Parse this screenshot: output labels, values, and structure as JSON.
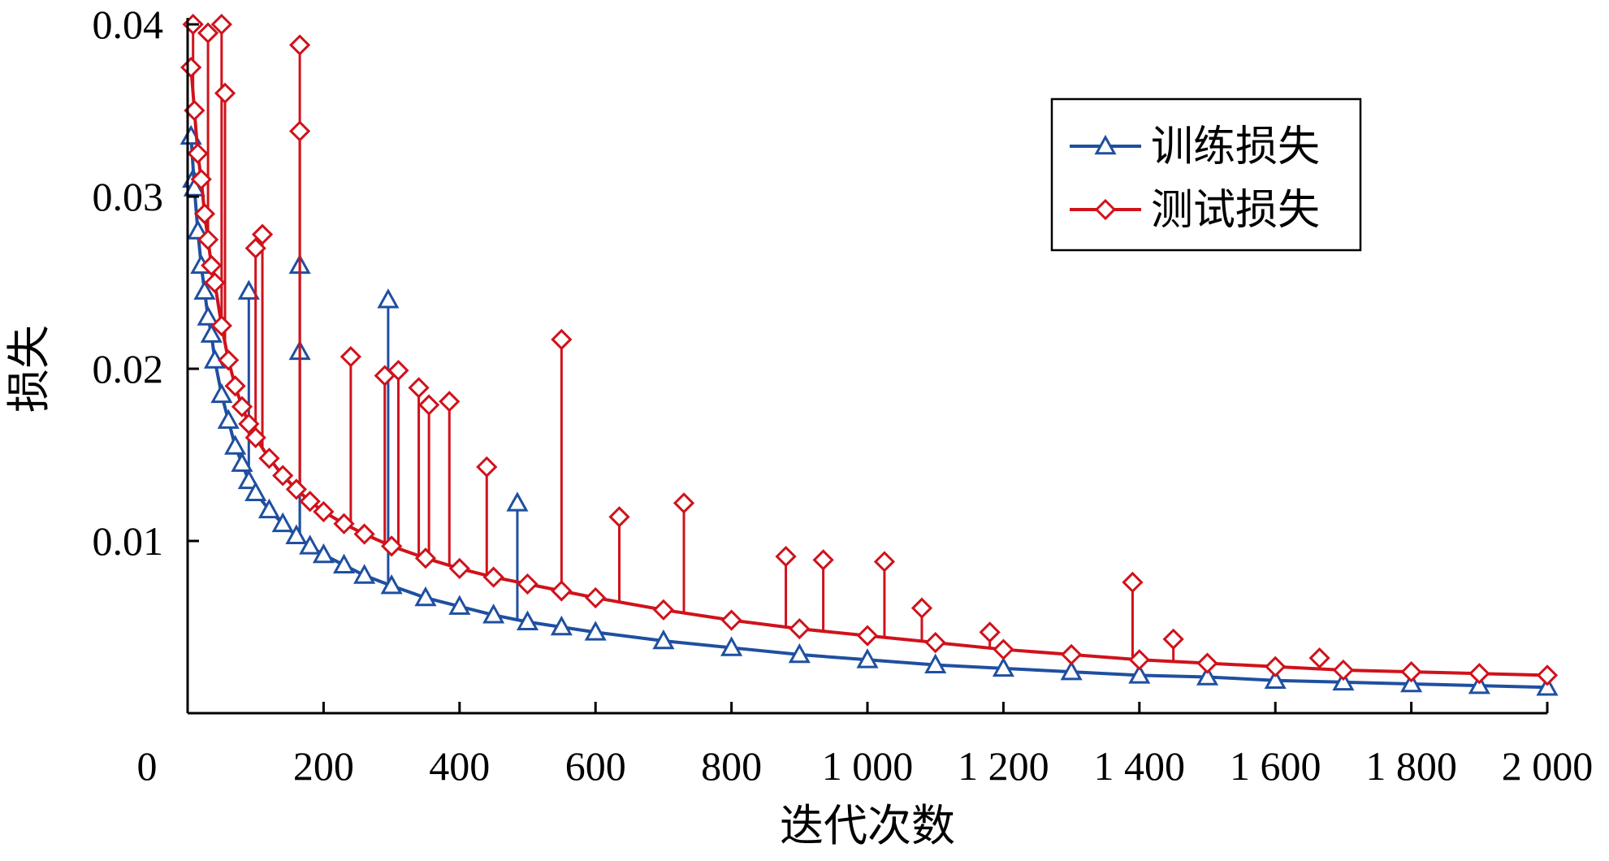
{
  "chart_data": {
    "type": "line",
    "xlabel": "迭代次数",
    "ylabel": "损失",
    "xlim": [
      0,
      2000
    ],
    "ylim": [
      0.0,
      0.04
    ],
    "x_ticks": [
      {
        "value": 0,
        "label": "0"
      },
      {
        "value": 200,
        "label": "200"
      },
      {
        "value": 400,
        "label": "400"
      },
      {
        "value": 600,
        "label": "600"
      },
      {
        "value": 800,
        "label": "800"
      },
      {
        "value": 1000,
        "label": "1 000"
      },
      {
        "value": 1200,
        "label": "1 200"
      },
      {
        "value": 1400,
        "label": "1 400"
      },
      {
        "value": 1600,
        "label": "1 600"
      },
      {
        "value": 1800,
        "label": "1 800"
      },
      {
        "value": 2000,
        "label": "2 000"
      }
    ],
    "y_ticks": [
      {
        "value": 0.01,
        "label": "0.01"
      },
      {
        "value": 0.02,
        "label": "0.02"
      },
      {
        "value": 0.03,
        "label": "0.03"
      },
      {
        "value": 0.04,
        "label": "0.04"
      }
    ],
    "grid": false,
    "legend_position": "top-right",
    "series": [
      {
        "name": "训练损失",
        "color": "#1f4fa0",
        "marker": "triangle",
        "x": [
          5,
          10,
          15,
          20,
          25,
          30,
          35,
          40,
          50,
          60,
          70,
          80,
          90,
          100,
          120,
          140,
          160,
          180,
          200,
          230,
          260,
          300,
          350,
          400,
          450,
          500,
          550,
          600,
          700,
          800,
          900,
          1000,
          1100,
          1200,
          1300,
          1400,
          1500,
          1600,
          1700,
          1800,
          1900,
          2000
        ],
        "y": [
          0.0335,
          0.0305,
          0.028,
          0.026,
          0.0245,
          0.023,
          0.022,
          0.0205,
          0.0185,
          0.017,
          0.0155,
          0.0145,
          0.0135,
          0.0128,
          0.0118,
          0.011,
          0.0103,
          0.0097,
          0.0092,
          0.0086,
          0.008,
          0.0074,
          0.0067,
          0.0062,
          0.0057,
          0.0053,
          0.005,
          0.0047,
          0.0042,
          0.0038,
          0.0034,
          0.0031,
          0.0028,
          0.0026,
          0.0024,
          0.0022,
          0.0021,
          0.0019,
          0.0018,
          0.0017,
          0.0016,
          0.0015
        ],
        "spikes": [
          {
            "x": 8,
            "y": 0.031
          },
          {
            "x": 90,
            "y": 0.0245
          },
          {
            "x": 165,
            "y": 0.026
          },
          {
            "x": 165,
            "y": 0.021
          },
          {
            "x": 295,
            "y": 0.024
          },
          {
            "x": 485,
            "y": 0.0122
          }
        ]
      },
      {
        "name": "测试损失",
        "color": "#d0121b",
        "marker": "diamond",
        "x": [
          5,
          10,
          15,
          20,
          25,
          30,
          35,
          40,
          50,
          60,
          70,
          80,
          90,
          100,
          120,
          140,
          160,
          180,
          200,
          230,
          260,
          300,
          350,
          400,
          450,
          500,
          550,
          600,
          700,
          800,
          900,
          1000,
          1100,
          1200,
          1300,
          1400,
          1500,
          1600,
          1700,
          1800,
          1900,
          2000
        ],
        "y": [
          0.0375,
          0.035,
          0.0325,
          0.031,
          0.029,
          0.0275,
          0.026,
          0.025,
          0.0225,
          0.0205,
          0.019,
          0.0178,
          0.0168,
          0.016,
          0.0148,
          0.0138,
          0.013,
          0.0123,
          0.0117,
          0.011,
          0.0104,
          0.0097,
          0.009,
          0.0084,
          0.0079,
          0.0075,
          0.0071,
          0.0067,
          0.006,
          0.0054,
          0.0049,
          0.0045,
          0.0041,
          0.0037,
          0.0034,
          0.0031,
          0.0029,
          0.0027,
          0.0025,
          0.0024,
          0.0023,
          0.0022
        ],
        "spikes": [
          {
            "x": 8,
            "y": 0.04
          },
          {
            "x": 30,
            "y": 0.0395
          },
          {
            "x": 50,
            "y": 0.04
          },
          {
            "x": 55,
            "y": 0.036
          },
          {
            "x": 110,
            "y": 0.0278
          },
          {
            "x": 100,
            "y": 0.027
          },
          {
            "x": 165,
            "y": 0.0388
          },
          {
            "x": 165,
            "y": 0.0338
          },
          {
            "x": 240,
            "y": 0.0207
          },
          {
            "x": 290,
            "y": 0.0196
          },
          {
            "x": 310,
            "y": 0.0199
          },
          {
            "x": 340,
            "y": 0.0189
          },
          {
            "x": 355,
            "y": 0.0179
          },
          {
            "x": 385,
            "y": 0.0181
          },
          {
            "x": 440,
            "y": 0.0143
          },
          {
            "x": 550,
            "y": 0.0217
          },
          {
            "x": 635,
            "y": 0.0114
          },
          {
            "x": 730,
            "y": 0.0122
          },
          {
            "x": 880,
            "y": 0.0091
          },
          {
            "x": 935,
            "y": 0.0089
          },
          {
            "x": 1025,
            "y": 0.0088
          },
          {
            "x": 1080,
            "y": 0.0061
          },
          {
            "x": 1180,
            "y": 0.0047
          },
          {
            "x": 1390,
            "y": 0.0076
          },
          {
            "x": 1450,
            "y": 0.0043
          },
          {
            "x": 1665,
            "y": 0.0032
          }
        ]
      }
    ]
  }
}
